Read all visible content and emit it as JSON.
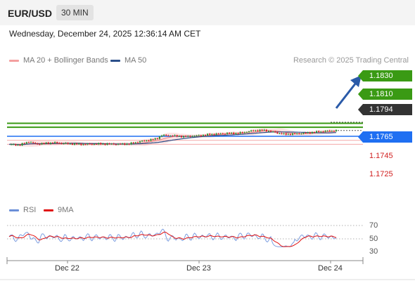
{
  "header": {
    "symbol": "EUR/USD",
    "timeframe": "30 MIN"
  },
  "datetime": "Wednesday, December 24, 2025 12:36:14 AM CET",
  "legend": {
    "ma20": "MA 20 + Bollinger Bands",
    "ma50": "MA 50"
  },
  "credit": "Research © 2025 Trading Central",
  "levels": {
    "target2": "1.1830",
    "target1": "1.1810",
    "current": "1.1794",
    "pivot": "1.1765",
    "support1": "1.1745",
    "support2": "1.1725"
  },
  "rsi": {
    "legend_rsi": "RSI",
    "legend_ma": "9MA",
    "axis": [
      "70",
      "50",
      "30"
    ]
  },
  "xaxis": [
    "Dec 22",
    "Dec 23",
    "Dec 24"
  ],
  "colors": {
    "up": "#2f8f2f",
    "down": "#d12020",
    "resistance": "#3a9a14",
    "pivot": "#1f6ff2",
    "current": "#333333",
    "ma50": "#2b4f8a",
    "band": "#f9c3c3",
    "ma20": "#f08080"
  }
}
